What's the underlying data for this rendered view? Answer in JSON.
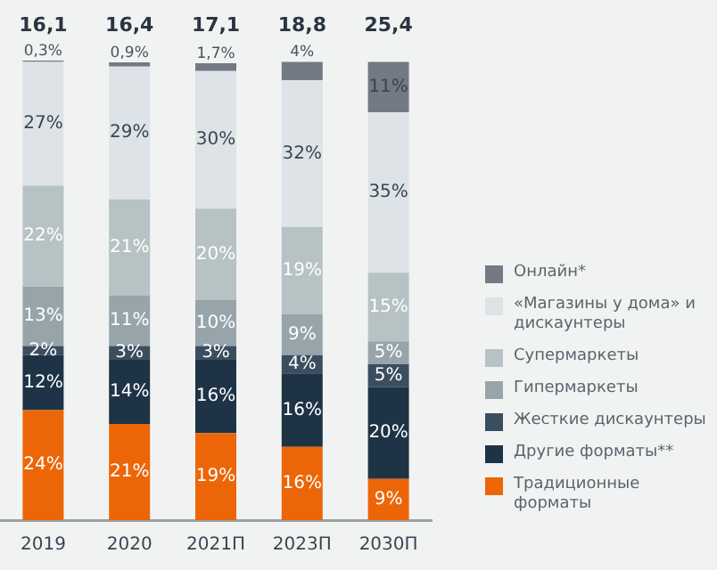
{
  "chart_data": {
    "type": "bar",
    "stacked": true,
    "categories": [
      "2019",
      "2020",
      "2021П",
      "2023П",
      "2030П"
    ],
    "series": [
      {
        "name": "Традиционные форматы",
        "color": "#ec6608",
        "values": [
          24,
          21,
          19,
          16,
          9
        ],
        "value_labels": [
          "24%",
          "21%",
          "19%",
          "16%",
          "9%"
        ]
      },
      {
        "name": "Другие форматы**",
        "color": "#1e3346",
        "values": [
          12,
          14,
          16,
          16,
          20
        ],
        "value_labels": [
          "12%",
          "14%",
          "16%",
          "16%",
          "20%"
        ]
      },
      {
        "name": "Жесткие дискаунтеры",
        "color": "#3a4e5f",
        "values": [
          2,
          3,
          3,
          4,
          5
        ],
        "value_labels": [
          "2%",
          "3%",
          "3%",
          "4%",
          "5%"
        ]
      },
      {
        "name": "Гипермаркеты",
        "color": "#97a5aa",
        "values": [
          13,
          11,
          10,
          9,
          5
        ],
        "value_labels": [
          "13%",
          "11%",
          "10%",
          "9%",
          "5%"
        ]
      },
      {
        "name": "Супермаркеты",
        "color": "#b7c2c4",
        "values": [
          22,
          21,
          20,
          19,
          15
        ],
        "value_labels": [
          "22%",
          "21%",
          "20%",
          "19%",
          "15%"
        ]
      },
      {
        "name": "«Магазины у дома» и дискаунтеры",
        "color": "#dde3e6",
        "values": [
          27,
          29,
          30,
          32,
          35
        ],
        "value_labels": [
          "27%",
          "29%",
          "30%",
          "32%",
          "35%"
        ]
      },
      {
        "name": "Онлайн*",
        "color": "#737a83",
        "values": [
          0.3,
          0.9,
          1.7,
          4,
          11
        ],
        "value_labels": [
          "0,3%",
          "0,9%",
          "1,7%",
          "4%",
          "11%"
        ]
      }
    ],
    "annotations": [
      "16,1",
      "16,4",
      "17,1",
      "18,8",
      "25,4"
    ],
    "legend": "right",
    "grid": false
  }
}
